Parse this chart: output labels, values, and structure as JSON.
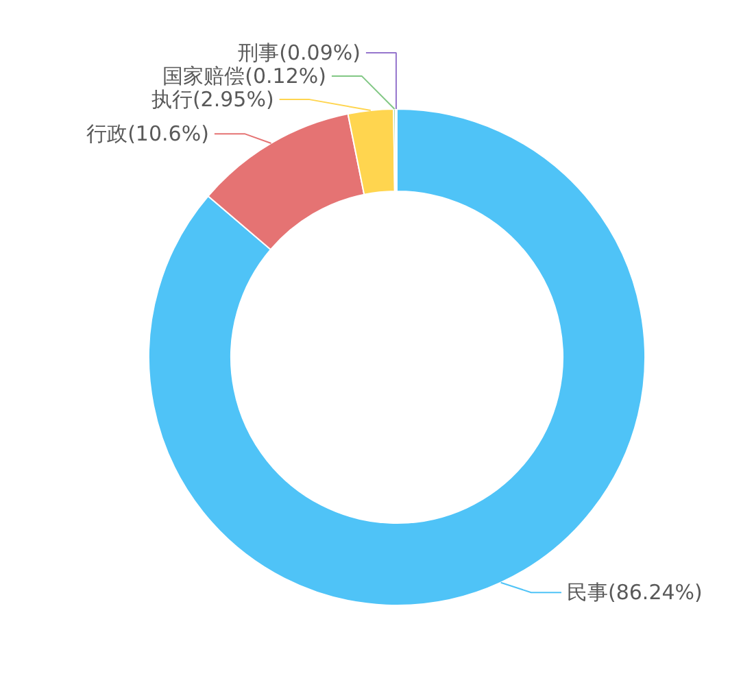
{
  "chart_data": {
    "type": "donut",
    "categories": [
      "民事",
      "行政",
      "执行",
      "国家赔偿",
      "刑事"
    ],
    "values": [
      86.24,
      10.6,
      2.95,
      0.12,
      0.09
    ],
    "value_labels": [
      "(86.24%)",
      "(10.6%)",
      "(2.95%)",
      "(0.12%)",
      "(0.09%)"
    ],
    "colors": [
      "#4fc3f7",
      "#e57373",
      "#ffd54f",
      "#81c784",
      "#9575cd"
    ]
  }
}
